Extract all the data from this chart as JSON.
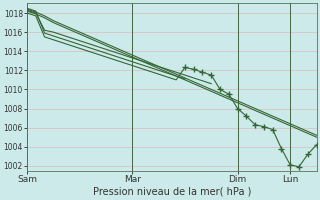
{
  "xlabel": "Pression niveau de la mer( hPa )",
  "bg_color": "#cceaea",
  "grid_color": "#ddbbbb",
  "line_color": "#336633",
  "ylim": [
    1001.5,
    1019.0
  ],
  "yticks": [
    1002,
    1004,
    1006,
    1008,
    1010,
    1012,
    1014,
    1016,
    1018
  ],
  "xlim": [
    0,
    264
  ],
  "day_positions": [
    0,
    96,
    192,
    240
  ],
  "day_labels": [
    "Sam",
    "Mar",
    "Dim",
    "Lun"
  ],
  "lines": [
    {
      "x": [
        0,
        8,
        16,
        24,
        32,
        40,
        48,
        56,
        64,
        72,
        80,
        88,
        96,
        104,
        112,
        120,
        128,
        136,
        144,
        152,
        160,
        168,
        176,
        184,
        192,
        200,
        208,
        216,
        224,
        232,
        240,
        248,
        256,
        264
      ],
      "y": [
        1018.2,
        1017.9,
        1017.5,
        1017.0,
        1016.6,
        1016.2,
        1015.8,
        1015.4,
        1015.0,
        1014.6,
        1014.2,
        1013.8,
        1013.4,
        1013.0,
        1012.6,
        1012.2,
        1011.8,
        1011.4,
        1011.0,
        1010.6,
        1010.2,
        1009.8,
        1009.4,
        1009.0,
        1008.6,
        1008.2,
        1007.8,
        1007.4,
        1007.0,
        1006.6,
        1006.2,
        1005.8,
        1005.4,
        1005.0
      ]
    },
    {
      "x": [
        0,
        8,
        16,
        24,
        32,
        40,
        48,
        56,
        64,
        72,
        80,
        88,
        96,
        104,
        112,
        120,
        128,
        136,
        144,
        152,
        160,
        168,
        176,
        184,
        192,
        200,
        208,
        216,
        224,
        232,
        240,
        248,
        256,
        264
      ],
      "y": [
        1018.4,
        1018.1,
        1017.7,
        1017.2,
        1016.8,
        1016.4,
        1016.0,
        1015.6,
        1015.2,
        1014.8,
        1014.4,
        1014.0,
        1013.6,
        1013.2,
        1012.8,
        1012.4,
        1012.0,
        1011.6,
        1011.2,
        1010.8,
        1010.4,
        1010.0,
        1009.6,
        1009.2,
        1008.8,
        1008.4,
        1008.0,
        1007.6,
        1007.2,
        1006.8,
        1006.4,
        1006.0,
        1005.6,
        1005.2
      ]
    },
    {
      "x": [
        0,
        8,
        16,
        24,
        32,
        40,
        48,
        56,
        64,
        72,
        80,
        88,
        96,
        104,
        112,
        120,
        128,
        136,
        144,
        152,
        160,
        168
      ],
      "y": [
        1018.3,
        1018.0,
        1016.2,
        1016.0,
        1015.7,
        1015.4,
        1015.1,
        1014.8,
        1014.5,
        1014.2,
        1013.9,
        1013.6,
        1013.3,
        1013.0,
        1012.7,
        1012.4,
        1012.1,
        1011.8,
        1011.5,
        1011.2,
        1010.9,
        1010.6
      ]
    },
    {
      "x": [
        0,
        8,
        16,
        24,
        32,
        40,
        48,
        56,
        64,
        72,
        80,
        88,
        96,
        104,
        112,
        120,
        128,
        136,
        144
      ],
      "y": [
        1018.5,
        1018.2,
        1015.9,
        1015.6,
        1015.3,
        1015.0,
        1014.7,
        1014.4,
        1014.1,
        1013.8,
        1013.5,
        1013.2,
        1012.9,
        1012.6,
        1012.3,
        1012.0,
        1011.7,
        1011.4,
        1011.1
      ]
    },
    {
      "x": [
        0,
        8,
        16,
        24,
        32,
        40,
        48,
        56,
        64,
        72,
        80,
        88,
        96,
        104,
        112,
        120,
        128,
        136,
        144,
        152,
        160,
        168,
        176,
        184,
        192,
        200,
        208,
        216,
        224,
        232,
        240,
        248,
        256,
        264
      ],
      "y": [
        1018.0,
        1017.7,
        1015.5,
        1015.2,
        1014.9,
        1014.6,
        1014.3,
        1014.0,
        1013.7,
        1013.4,
        1013.1,
        1012.8,
        1012.5,
        1012.2,
        1011.9,
        1011.6,
        1011.3,
        1011.0,
        1012.3,
        1012.1,
        1011.8,
        1011.5,
        1010.0,
        1009.5,
        1008.0,
        1007.2,
        1006.3,
        1006.1,
        1005.8,
        1003.8,
        1002.1,
        1001.9,
        1003.2,
        1004.2
      ],
      "markers_x": [
        144,
        152,
        160,
        168,
        176,
        184,
        192,
        200,
        208,
        216,
        224,
        232,
        240,
        248,
        256,
        264
      ],
      "markers_y": [
        1012.3,
        1012.1,
        1011.8,
        1011.5,
        1010.0,
        1009.5,
        1008.0,
        1007.2,
        1006.3,
        1006.1,
        1005.8,
        1003.8,
        1002.1,
        1001.9,
        1003.2,
        1004.2
      ]
    }
  ],
  "figsize": [
    3.2,
    2.0
  ],
  "dpi": 100
}
